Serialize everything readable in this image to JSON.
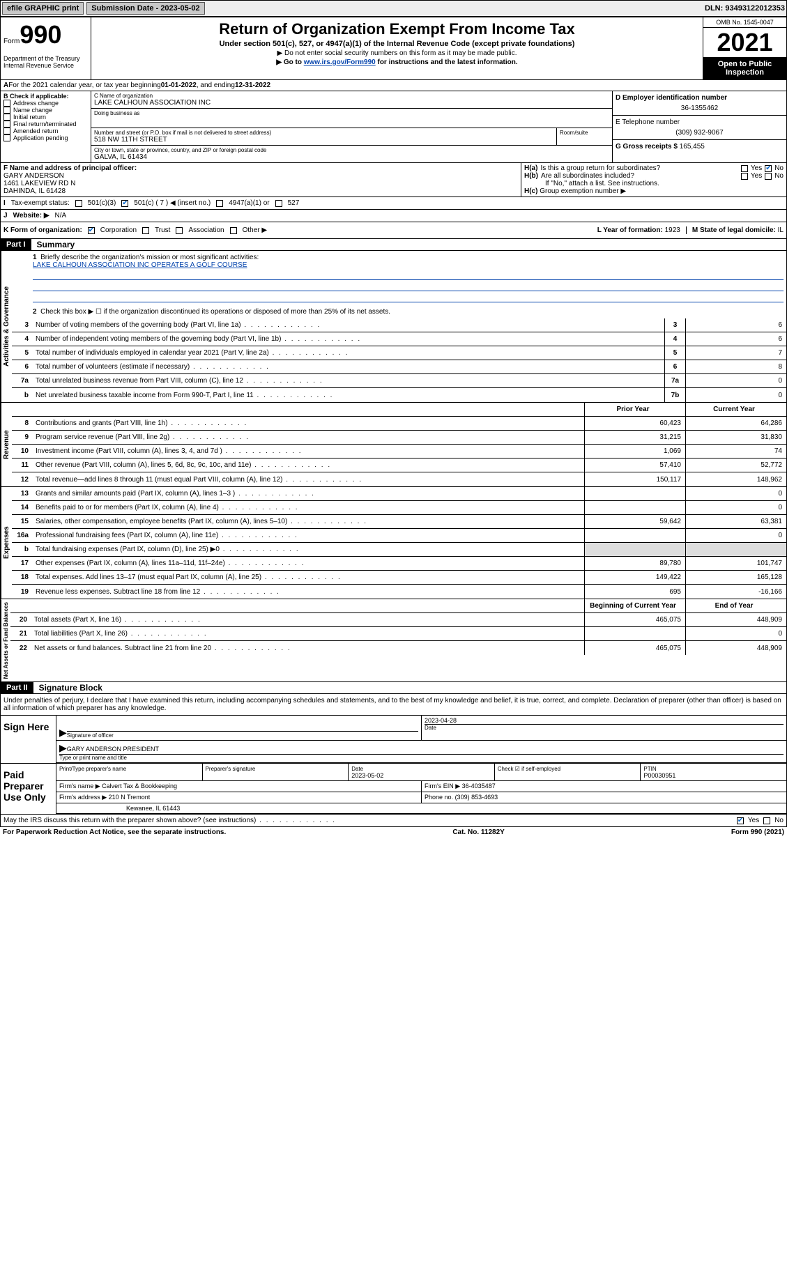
{
  "topbar": {
    "efile": "efile GRAPHIC print",
    "submission": "Submission Date - 2023-05-02",
    "dln": "DLN: 93493122012353"
  },
  "header": {
    "form_word": "Form",
    "form_num": "990",
    "dept": "Department of the Treasury\nInternal Revenue Service",
    "title": "Return of Organization Exempt From Income Tax",
    "subtitle": "Under section 501(c), 527, or 4947(a)(1) of the Internal Revenue Code (except private foundations)",
    "note1": "▶ Do not enter social security numbers on this form as it may be made public.",
    "note2_pre": "▶ Go to ",
    "note2_link": "www.irs.gov/Form990",
    "note2_post": " for instructions and the latest information.",
    "omb": "OMB No. 1545-0047",
    "year": "2021",
    "inspection": "Open to Public Inspection"
  },
  "period": {
    "label": "For the 2021 calendar year, or tax year beginning ",
    "begin": "01-01-2022",
    "mid": " , and ending ",
    "end": "12-31-2022"
  },
  "sectionB": {
    "label": "B Check if applicable:",
    "opts": [
      "Address change",
      "Name change",
      "Initial return",
      "Final return/terminated",
      "Amended return",
      "Application pending"
    ]
  },
  "sectionC": {
    "name_label": "C Name of organization",
    "name": "LAKE CALHOUN ASSOCIATION INC",
    "dba_label": "Doing business as",
    "addr_label": "Number and street (or P.O. box if mail is not delivered to street address)",
    "room_label": "Room/suite",
    "addr": "518 NW 11TH STREET",
    "city_label": "City or town, state or province, country, and ZIP or foreign postal code",
    "city": "GALVA, IL  61434"
  },
  "sectionD": {
    "label": "D Employer identification number",
    "val": "36-1355462"
  },
  "sectionE": {
    "label": "E Telephone number",
    "val": "(309) 932-9067"
  },
  "sectionG": {
    "label": "G Gross receipts $ ",
    "val": "165,455"
  },
  "sectionF": {
    "label": "F Name and address of principal officer:",
    "name": "GARY ANDERSON",
    "addr1": "1461 LAKEVIEW RD N",
    "addr2": "DAHINDA, IL  61428"
  },
  "sectionH": {
    "ha": "Is this a group return for subordinates?",
    "hb": "Are all subordinates included?",
    "hnote": "If \"No,\" attach a list. See instructions.",
    "hc": "Group exemption number ▶"
  },
  "sectionI": {
    "label": "Tax-exempt status:",
    "o1": "501(c)(3)",
    "o2": "501(c) ( 7 ) ◀ (insert no.)",
    "o3": "4947(a)(1) or",
    "o4": "527"
  },
  "sectionJ": {
    "label": "Website: ▶",
    "val": "N/A"
  },
  "sectionK": {
    "label": "K Form of organization:",
    "o1": "Corporation",
    "o2": "Trust",
    "o3": "Association",
    "o4": "Other ▶"
  },
  "sectionL": {
    "label": "L Year of formation: ",
    "val": "1923"
  },
  "sectionM": {
    "label": "M State of legal domicile: ",
    "val": "IL"
  },
  "part1": {
    "header": "Part I",
    "title": "Summary",
    "l1": "Briefly describe the organization's mission or most significant activities:",
    "mission": "LAKE CALHOUN ASSOCIATION INC OPERATES A GOLF COURSE",
    "l2": "Check this box ▶ ☐  if the organization discontinued its operations or disposed of more than 25% of its net assets.",
    "rows_gov": [
      {
        "n": "3",
        "label": "Number of voting members of the governing body (Part VI, line 1a)",
        "box": "3",
        "val": "6"
      },
      {
        "n": "4",
        "label": "Number of independent voting members of the governing body (Part VI, line 1b)",
        "box": "4",
        "val": "6"
      },
      {
        "n": "5",
        "label": "Total number of individuals employed in calendar year 2021 (Part V, line 2a)",
        "box": "5",
        "val": "7"
      },
      {
        "n": "6",
        "label": "Total number of volunteers (estimate if necessary)",
        "box": "6",
        "val": "8"
      },
      {
        "n": "7a",
        "label": "Total unrelated business revenue from Part VIII, column (C), line 12",
        "box": "7a",
        "val": "0"
      },
      {
        "n": "b",
        "label": "Net unrelated business taxable income from Form 990-T, Part I, line 11",
        "box": "7b",
        "val": "0"
      }
    ],
    "col_prior": "Prior Year",
    "col_current": "Current Year",
    "rows_rev": [
      {
        "n": "8",
        "label": "Contributions and grants (Part VIII, line 1h)",
        "p": "60,423",
        "c": "64,286"
      },
      {
        "n": "9",
        "label": "Program service revenue (Part VIII, line 2g)",
        "p": "31,215",
        "c": "31,830"
      },
      {
        "n": "10",
        "label": "Investment income (Part VIII, column (A), lines 3, 4, and 7d )",
        "p": "1,069",
        "c": "74"
      },
      {
        "n": "11",
        "label": "Other revenue (Part VIII, column (A), lines 5, 6d, 8c, 9c, 10c, and 11e)",
        "p": "57,410",
        "c": "52,772"
      },
      {
        "n": "12",
        "label": "Total revenue—add lines 8 through 11 (must equal Part VIII, column (A), line 12)",
        "p": "150,117",
        "c": "148,962"
      }
    ],
    "rows_exp": [
      {
        "n": "13",
        "label": "Grants and similar amounts paid (Part IX, column (A), lines 1–3 )",
        "p": "",
        "c": "0"
      },
      {
        "n": "14",
        "label": "Benefits paid to or for members (Part IX, column (A), line 4)",
        "p": "",
        "c": "0"
      },
      {
        "n": "15",
        "label": "Salaries, other compensation, employee benefits (Part IX, column (A), lines 5–10)",
        "p": "59,642",
        "c": "63,381"
      },
      {
        "n": "16a",
        "label": "Professional fundraising fees (Part IX, column (A), line 11e)",
        "p": "",
        "c": "0"
      },
      {
        "n": "b",
        "label": "Total fundraising expenses (Part IX, column (D), line 25) ▶0",
        "p": "",
        "c": "",
        "shaded": true
      },
      {
        "n": "17",
        "label": "Other expenses (Part IX, column (A), lines 11a–11d, 11f–24e)",
        "p": "89,780",
        "c": "101,747"
      },
      {
        "n": "18",
        "label": "Total expenses. Add lines 13–17 (must equal Part IX, column (A), line 25)",
        "p": "149,422",
        "c": "165,128"
      },
      {
        "n": "19",
        "label": "Revenue less expenses. Subtract line 18 from line 12",
        "p": "695",
        "c": "-16,166"
      }
    ],
    "col_boy": "Beginning of Current Year",
    "col_eoy": "End of Year",
    "rows_net": [
      {
        "n": "20",
        "label": "Total assets (Part X, line 16)",
        "p": "465,075",
        "c": "448,909"
      },
      {
        "n": "21",
        "label": "Total liabilities (Part X, line 26)",
        "p": "",
        "c": "0"
      },
      {
        "n": "22",
        "label": "Net assets or fund balances. Subtract line 21 from line 20",
        "p": "465,075",
        "c": "448,909"
      }
    ],
    "side_gov": "Activities & Governance",
    "side_rev": "Revenue",
    "side_exp": "Expenses",
    "side_net": "Net Assets or Fund Balances"
  },
  "part2": {
    "header": "Part II",
    "title": "Signature Block",
    "penalties": "Under penalties of perjury, I declare that I have examined this return, including accompanying schedules and statements, and to the best of my knowledge and belief, it is true, correct, and complete. Declaration of preparer (other than officer) is based on all information of which preparer has any knowledge."
  },
  "sign": {
    "title": "Sign Here",
    "sig_label": "Signature of officer",
    "date_label": "Date",
    "date": "2023-04-28",
    "name": "GARY ANDERSON  PRESIDENT",
    "name_label": "Type or print name and title"
  },
  "preparer": {
    "title": "Paid Preparer Use Only",
    "c1": "Print/Type preparer's name",
    "c2": "Preparer's signature",
    "c3": "Date",
    "c3v": "2023-05-02",
    "c4": "Check ☑ if self-employed",
    "c5": "PTIN",
    "c5v": "P00030951",
    "firm_label": "Firm's name   ▶",
    "firm": "Calvert Tax & Bookkeeping",
    "ein_label": "Firm's EIN ▶",
    "ein": "36-4035487",
    "addr_label": "Firm's address ▶",
    "addr": "210 N Tremont",
    "addr2": "Kewanee, IL  61443",
    "phone_label": "Phone no.",
    "phone": "(309) 853-4693",
    "discuss": "May the IRS discuss this return with the preparer shown above? (see instructions)"
  },
  "footer": {
    "left": "For Paperwork Reduction Act Notice, see the separate instructions.",
    "mid": "Cat. No. 11282Y",
    "right": "Form 990 (2021)"
  }
}
